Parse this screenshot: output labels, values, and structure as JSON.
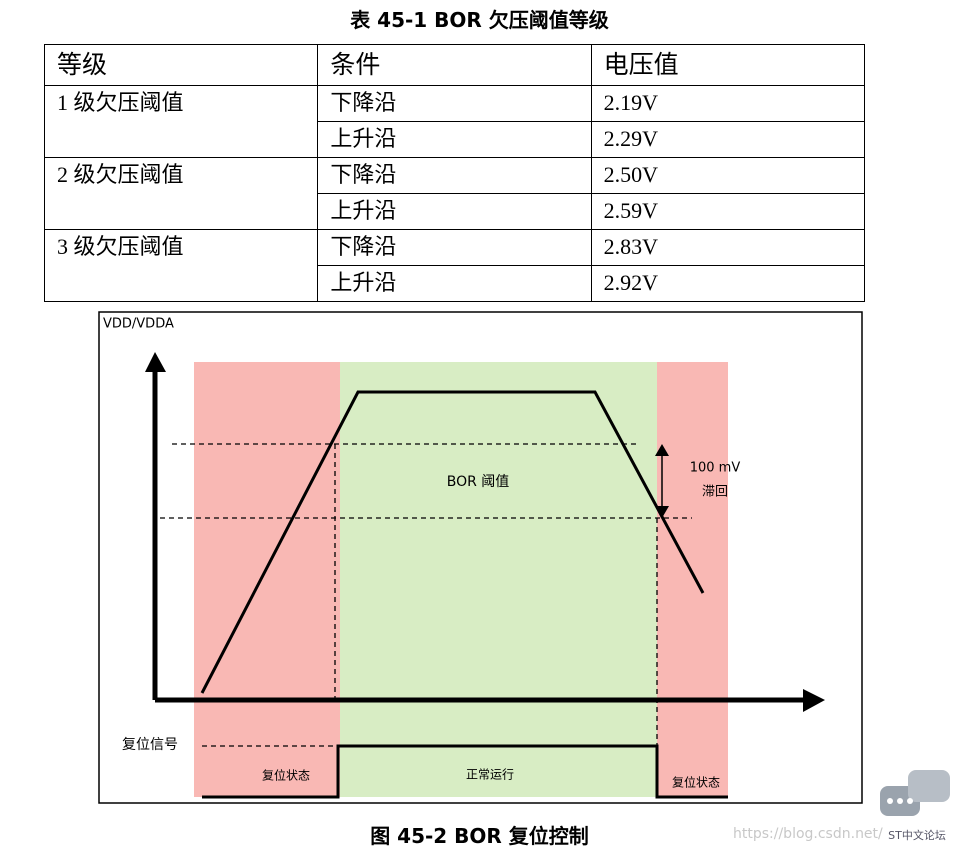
{
  "table": {
    "caption": "表 45-1 BOR 欠压阈值等级",
    "header": [
      "等级",
      "条件",
      "电压值"
    ],
    "groups": [
      {
        "level": "1 级欠压阈值",
        "rows": [
          [
            "下降沿",
            "2.19V"
          ],
          [
            "上升沿",
            "2.29V"
          ]
        ]
      },
      {
        "level": "2 级欠压阈值",
        "rows": [
          [
            "下降沿",
            "2.50V"
          ],
          [
            "上升沿",
            "2.59V"
          ]
        ]
      },
      {
        "level": "3 级欠压阈值",
        "rows": [
          [
            "下降沿",
            "2.83V"
          ],
          [
            "上升沿",
            "2.92V"
          ]
        ]
      }
    ]
  },
  "figure": {
    "y_axis_label": "VDD/VDDA",
    "threshold_label": "BOR 阈值",
    "hysteresis_value": "100 mV",
    "hysteresis_label": "滞回",
    "reset_signal_label": "复位信号",
    "states": [
      "复位状态",
      "正常运行",
      "复位状态"
    ],
    "caption": "图 45-2 BOR 复位控制"
  },
  "watermark": {
    "url": "https://blog.csdn.net/",
    "site": "ST中文论坛"
  }
}
